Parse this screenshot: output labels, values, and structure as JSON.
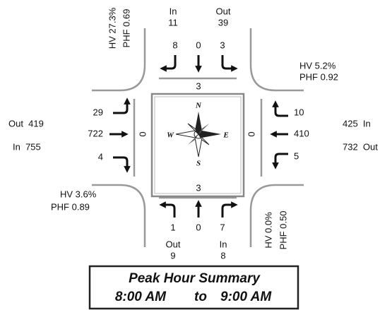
{
  "north": {
    "hv": "HV 27.3%",
    "phf": "PHF 0.69",
    "in_label": "In",
    "in": 11,
    "out_label": "Out",
    "out": 39,
    "movements": [
      8,
      0,
      3
    ],
    "crosswalk": 3
  },
  "east": {
    "hv": "HV 5.2%",
    "phf": "PHF 0.92",
    "movements": [
      10,
      410,
      5
    ],
    "in": "425  In",
    "out": "732  Out",
    "crosswalk": 0
  },
  "south": {
    "hv": "HV 0.0%",
    "phf": "PHF 0.50",
    "movements": [
      1,
      0,
      7
    ],
    "out_label": "Out",
    "out": 9,
    "in_label": "In",
    "in": 8,
    "crosswalk": 3
  },
  "west": {
    "hv": "HV 3.6%",
    "phf": "PHF 0.89",
    "movements": [
      29,
      722,
      4
    ],
    "out": "Out  419",
    "in": "In  755",
    "crosswalk": 0
  },
  "compass": {
    "n": "N",
    "e": "E",
    "s": "S",
    "w": "W"
  },
  "summary": {
    "title": "Peak Hour Summary",
    "start": "8:00 AM",
    "separator": "to",
    "end": "9:00 AM"
  }
}
